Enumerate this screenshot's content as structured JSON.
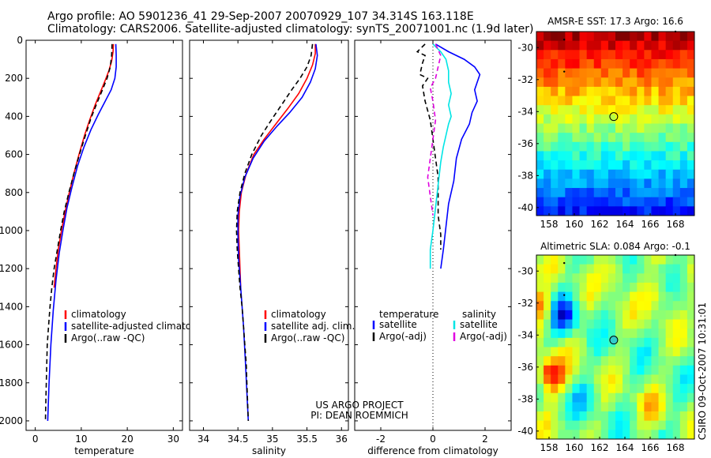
{
  "header": {
    "title_line1": "Argo profile: AO 5901236_41 29-Sep-2007 20070929_107 34.314S 163.118E",
    "title_line2": "Climatology: CARS2006. Satellite-adjusted climatology: synTS_20071001.nc (1.9d later)"
  },
  "side_label": "CSIRO 09-Oct-2007 10:31:01",
  "credits": {
    "line1": "US ARGO PROJECT",
    "line2": "PI: DEAN ROEMMICH"
  },
  "colors": {
    "climatology": "#ff0000",
    "satellite": "#0000ff",
    "argo": "#000000",
    "sat_salinity": "#00e5e5",
    "argo_sal": "#e000e0"
  },
  "chart_data": [
    {
      "type": "line",
      "xlabel": "temperature",
      "xlim": [
        -2,
        32
      ],
      "ylim": [
        2050,
        0
      ],
      "xticks": [
        0,
        10,
        20,
        30
      ],
      "yticks": [
        0,
        200,
        400,
        600,
        800,
        1000,
        1200,
        1400,
        1600,
        1800,
        2000
      ],
      "legend": [
        "climatology",
        "satellite-adjusted climatology",
        "Argo(..raw -QC)"
      ],
      "series": [
        {
          "name": "climatology",
          "color": "#ff0000",
          "dash": "",
          "points": [
            [
              17.0,
              20
            ],
            [
              16.9,
              60
            ],
            [
              16.6,
              110
            ],
            [
              16.0,
              160
            ],
            [
              15.2,
              210
            ],
            [
              14.2,
              270
            ],
            [
              13.0,
              340
            ],
            [
              11.8,
              420
            ],
            [
              10.7,
              500
            ],
            [
              9.5,
              600
            ],
            [
              8.4,
              700
            ],
            [
              7.4,
              800
            ],
            [
              6.5,
              900
            ],
            [
              5.7,
              1000
            ],
            [
              5.0,
              1100
            ],
            [
              4.5,
              1200
            ],
            [
              4.1,
              1300
            ]
          ]
        },
        {
          "name": "satellite-adjusted climatology",
          "color": "#0000ff",
          "dash": "",
          "points": [
            [
              17.5,
              20
            ],
            [
              17.6,
              80
            ],
            [
              17.6,
              140
            ],
            [
              17.3,
              200
            ],
            [
              16.5,
              260
            ],
            [
              15.2,
              320
            ],
            [
              13.7,
              390
            ],
            [
              12.1,
              470
            ],
            [
              10.6,
              560
            ],
            [
              9.2,
              660
            ],
            [
              8.0,
              770
            ],
            [
              6.9,
              880
            ],
            [
              6.0,
              1000
            ],
            [
              5.2,
              1120
            ],
            [
              4.5,
              1260
            ],
            [
              3.9,
              1420
            ],
            [
              3.4,
              1600
            ],
            [
              3.0,
              1800
            ],
            [
              2.7,
              2000
            ]
          ]
        },
        {
          "name": "Argo(..raw -QC)",
          "color": "#000000",
          "dash": "6,4",
          "points": [
            [
              16.7,
              20
            ],
            [
              16.6,
              80
            ],
            [
              16.3,
              140
            ],
            [
              15.6,
              200
            ],
            [
              14.6,
              260
            ],
            [
              13.4,
              330
            ],
            [
              12.1,
              410
            ],
            [
              10.9,
              500
            ],
            [
              9.6,
              600
            ],
            [
              8.4,
              700
            ],
            [
              7.3,
              800
            ],
            [
              6.3,
              900
            ],
            [
              5.5,
              1000
            ],
            [
              4.8,
              1100
            ],
            [
              4.1,
              1200
            ],
            [
              3.6,
              1300
            ],
            [
              3.2,
              1400
            ],
            [
              2.9,
              1500
            ],
            [
              2.6,
              1600
            ],
            [
              2.5,
              1700
            ],
            [
              2.4,
              1800
            ],
            [
              2.3,
              1900
            ],
            [
              2.2,
              2000
            ]
          ]
        }
      ]
    },
    {
      "type": "line",
      "xlabel": "salinity",
      "xlim": [
        33.8,
        36.1
      ],
      "ylim": [
        2050,
        0
      ],
      "xticks": [
        34,
        34.5,
        35,
        35.5,
        36
      ],
      "legend": [
        "climatology",
        "satellite adj. clim.",
        "Argo(..raw -QC)"
      ],
      "series": [
        {
          "name": "climatology",
          "color": "#ff0000",
          "dash": "",
          "points": [
            [
              35.62,
              20
            ],
            [
              35.62,
              70
            ],
            [
              35.58,
              130
            ],
            [
              35.5,
              200
            ],
            [
              35.38,
              280
            ],
            [
              35.22,
              360
            ],
            [
              35.05,
              440
            ],
            [
              34.88,
              520
            ],
            [
              34.73,
              600
            ],
            [
              34.62,
              700
            ],
            [
              34.55,
              800
            ],
            [
              34.52,
              900
            ],
            [
              34.51,
              1000
            ],
            [
              34.52,
              1100
            ],
            [
              34.53,
              1200
            ],
            [
              34.54,
              1300
            ]
          ]
        },
        {
          "name": "satellite adj. clim.",
          "color": "#0000ff",
          "dash": "",
          "points": [
            [
              35.63,
              20
            ],
            [
              35.65,
              80
            ],
            [
              35.62,
              150
            ],
            [
              35.55,
              220
            ],
            [
              35.43,
              300
            ],
            [
              35.25,
              380
            ],
            [
              35.07,
              450
            ],
            [
              34.88,
              530
            ],
            [
              34.72,
              620
            ],
            [
              34.6,
              720
            ],
            [
              34.53,
              820
            ],
            [
              34.5,
              920
            ],
            [
              34.5,
              1020
            ],
            [
              34.51,
              1150
            ],
            [
              34.54,
              1300
            ],
            [
              34.58,
              1500
            ],
            [
              34.61,
              1700
            ],
            [
              34.63,
              1850
            ],
            [
              34.65,
              2000
            ]
          ]
        },
        {
          "name": "Argo(..raw -QC)",
          "color": "#000000",
          "dash": "6,4",
          "points": [
            [
              35.58,
              20
            ],
            [
              35.56,
              80
            ],
            [
              35.5,
              140
            ],
            [
              35.4,
              200
            ],
            [
              35.28,
              260
            ],
            [
              35.15,
              330
            ],
            [
              35.0,
              410
            ],
            [
              34.84,
              500
            ],
            [
              34.7,
              600
            ],
            [
              34.6,
              700
            ],
            [
              34.53,
              800
            ],
            [
              34.49,
              900
            ],
            [
              34.48,
              1000
            ],
            [
              34.49,
              1100
            ],
            [
              34.51,
              1200
            ],
            [
              34.53,
              1300
            ],
            [
              34.56,
              1400
            ],
            [
              34.58,
              1500
            ],
            [
              34.6,
              1600
            ],
            [
              34.62,
              1700
            ],
            [
              34.63,
              1800
            ],
            [
              34.64,
              1900
            ],
            [
              34.65,
              2000
            ]
          ]
        }
      ]
    },
    {
      "type": "line",
      "xlabel": "difference from climatology",
      "xlim": [
        -3,
        3
      ],
      "ylim": [
        2050,
        0
      ],
      "xticks": [
        -2,
        0,
        2
      ],
      "legend_headers": [
        "temperature",
        "salinity"
      ],
      "legend": [
        "satellite",
        "Argo(-adj)",
        "satellite",
        "Argo(-adj)"
      ],
      "zero_line": 0,
      "series": [
        {
          "name": "satellite",
          "color": "#0000ff",
          "dash": "",
          "points": [
            [
              0.1,
              20
            ],
            [
              0.6,
              60
            ],
            [
              1.2,
              100
            ],
            [
              1.6,
              140
            ],
            [
              1.8,
              180
            ],
            [
              1.7,
              220
            ],
            [
              1.6,
              260
            ],
            [
              1.7,
              320
            ],
            [
              1.5,
              380
            ],
            [
              1.4,
              440
            ],
            [
              1.1,
              520
            ],
            [
              0.9,
              620
            ],
            [
              0.8,
              740
            ],
            [
              0.6,
              860
            ],
            [
              0.5,
              980
            ],
            [
              0.4,
              1100
            ],
            [
              0.3,
              1200
            ]
          ]
        },
        {
          "name": "Argo(-adj)",
          "color": "#000000",
          "dash": "6,4",
          "points": [
            [
              -0.3,
              20
            ],
            [
              -0.6,
              60
            ],
            [
              -0.3,
              80
            ],
            [
              -0.4,
              120
            ],
            [
              -0.5,
              180
            ],
            [
              -0.2,
              200
            ],
            [
              -0.4,
              240
            ],
            [
              -0.3,
              320
            ],
            [
              -0.1,
              420
            ],
            [
              0.0,
              520
            ],
            [
              0.1,
              620
            ],
            [
              0.2,
              720
            ],
            [
              0.2,
              820
            ],
            [
              0.2,
              920
            ],
            [
              0.3,
              1020
            ],
            [
              0.3,
              1100
            ]
          ]
        },
        {
          "name": "satellite",
          "color": "#00e5e5",
          "dash": "",
          "points": [
            [
              0.0,
              20
            ],
            [
              0.3,
              60
            ],
            [
              0.5,
              100
            ],
            [
              0.6,
              160
            ],
            [
              0.6,
              220
            ],
            [
              0.7,
              280
            ],
            [
              0.6,
              340
            ],
            [
              0.7,
              400
            ],
            [
              0.6,
              440
            ],
            [
              0.5,
              500
            ],
            [
              0.4,
              560
            ],
            [
              0.3,
              640
            ],
            [
              0.2,
              760
            ],
            [
              0.1,
              880
            ],
            [
              0.0,
              1000
            ],
            [
              -0.1,
              1100
            ],
            [
              -0.1,
              1200
            ]
          ]
        },
        {
          "name": "Argo(-adj)",
          "color": "#e000e0",
          "dash": "6,4",
          "points": [
            [
              0.1,
              20
            ],
            [
              0.3,
              80
            ],
            [
              0.2,
              140
            ],
            [
              0.1,
              200
            ],
            [
              -0.1,
              250
            ],
            [
              0.0,
              320
            ],
            [
              0.1,
              420
            ],
            [
              0.0,
              520
            ],
            [
              -0.1,
              620
            ],
            [
              -0.2,
              720
            ],
            [
              -0.1,
              820
            ],
            [
              0.0,
              920
            ]
          ]
        }
      ]
    },
    {
      "type": "heatmap",
      "title": "AMSR-E SST: 17.3 Argo: 16.6",
      "xlim": [
        157,
        169.5
      ],
      "ylim": [
        -40.5,
        -29
      ],
      "xticks": [
        158,
        160,
        162,
        164,
        166,
        168
      ],
      "yticks": [
        -30,
        -32,
        -34,
        -36,
        -38,
        -40
      ],
      "colorscale": "jet",
      "value_range": [
        14,
        21
      ],
      "grid_cols": 22,
      "grid_rows": 20,
      "marker": {
        "lon": 163.118,
        "lat": -34.314,
        "fill": "none"
      }
    },
    {
      "type": "heatmap",
      "title": "Altimetric SLA: 0.084 Argo: -0.1",
      "xlim": [
        157,
        169.5
      ],
      "ylim": [
        -40.5,
        -29
      ],
      "xticks": [
        158,
        160,
        162,
        164,
        166,
        168
      ],
      "yticks": [
        -30,
        -32,
        -34,
        -36,
        -38,
        -40
      ],
      "colorscale": "jet",
      "value_range": [
        -0.4,
        0.4
      ],
      "grid_cols": 22,
      "grid_rows": 20,
      "marker": {
        "lon": 163.118,
        "lat": -34.314,
        "fill": "#33cccc"
      }
    }
  ]
}
